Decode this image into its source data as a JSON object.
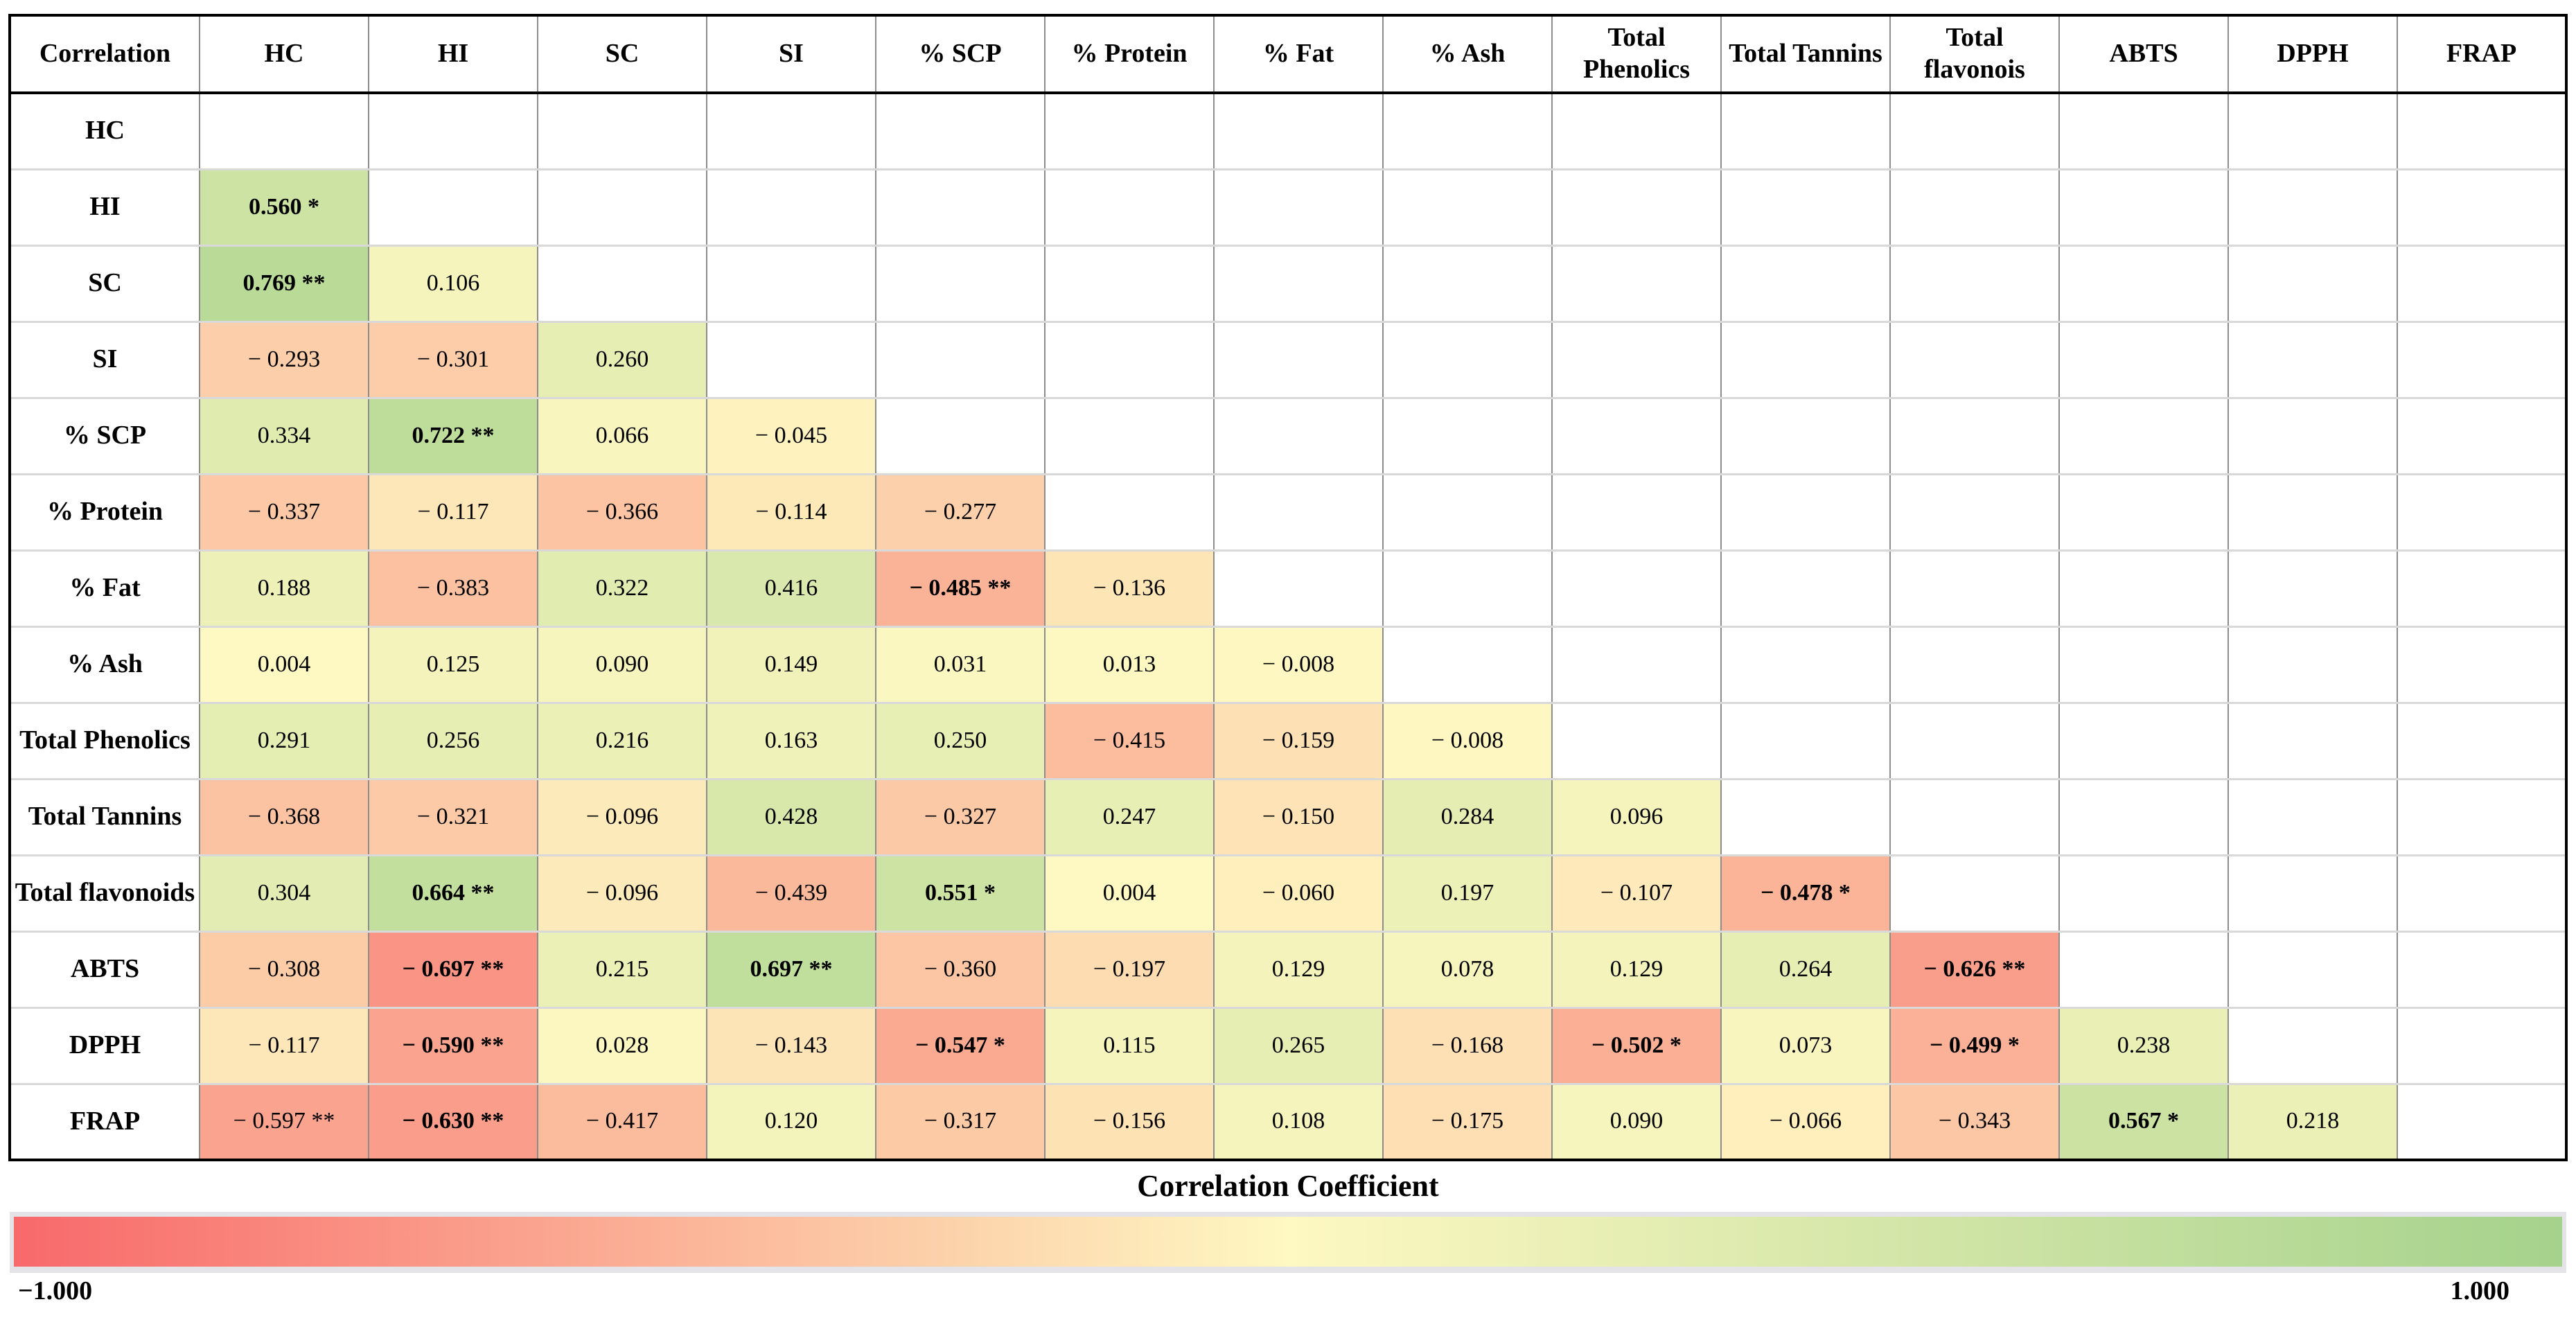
{
  "chart_data": {
    "type": "heatmap",
    "corner_label": "Correlation",
    "column_headers": [
      "HC",
      "HI",
      "SC",
      "SI",
      "% SCP",
      "% Protein",
      "% Fat",
      "% Ash",
      "Total Phenolics",
      "Total Tannins",
      "Total flavonois",
      "ABTS",
      "DPPH",
      "FRAP"
    ],
    "rows": [
      {
        "label": "HC",
        "cells": []
      },
      {
        "label": "HI",
        "cells": [
          {
            "text": "0.560 *",
            "value": 0.56,
            "bold": true
          }
        ]
      },
      {
        "label": "SC",
        "cells": [
          {
            "text": "0.769 **",
            "value": 0.769,
            "bold": true
          },
          {
            "text": "0.106",
            "value": 0.106,
            "bold": false
          }
        ]
      },
      {
        "label": "SI",
        "cells": [
          {
            "text": "− 0.293",
            "value": -0.293,
            "bold": false
          },
          {
            "text": "− 0.301",
            "value": -0.301,
            "bold": false
          },
          {
            "text": "0.260",
            "value": 0.26,
            "bold": false
          }
        ]
      },
      {
        "label": "% SCP",
        "cells": [
          {
            "text": "0.334",
            "value": 0.334,
            "bold": false
          },
          {
            "text": "0.722 **",
            "value": 0.722,
            "bold": true
          },
          {
            "text": "0.066",
            "value": 0.066,
            "bold": false
          },
          {
            "text": "− 0.045",
            "value": -0.045,
            "bold": false
          }
        ]
      },
      {
        "label": "% Protein",
        "cells": [
          {
            "text": "− 0.337",
            "value": -0.337,
            "bold": false
          },
          {
            "text": "− 0.117",
            "value": -0.117,
            "bold": false
          },
          {
            "text": "− 0.366",
            "value": -0.366,
            "bold": false
          },
          {
            "text": "− 0.114",
            "value": -0.114,
            "bold": false
          },
          {
            "text": "− 0.277",
            "value": -0.277,
            "bold": false
          }
        ]
      },
      {
        "label": "% Fat",
        "cells": [
          {
            "text": "0.188",
            "value": 0.188,
            "bold": false
          },
          {
            "text": "− 0.383",
            "value": -0.383,
            "bold": false
          },
          {
            "text": "0.322",
            "value": 0.322,
            "bold": false
          },
          {
            "text": "0.416",
            "value": 0.416,
            "bold": false
          },
          {
            "text": "− 0.485 **",
            "value": -0.485,
            "bold": true
          },
          {
            "text": "− 0.136",
            "value": -0.136,
            "bold": false
          }
        ]
      },
      {
        "label": "% Ash",
        "cells": [
          {
            "text": "0.004",
            "value": 0.004,
            "bold": false
          },
          {
            "text": "0.125",
            "value": 0.125,
            "bold": false
          },
          {
            "text": "0.090",
            "value": 0.09,
            "bold": false
          },
          {
            "text": "0.149",
            "value": 0.149,
            "bold": false
          },
          {
            "text": "0.031",
            "value": 0.031,
            "bold": false
          },
          {
            "text": "0.013",
            "value": 0.013,
            "bold": false
          },
          {
            "text": "− 0.008",
            "value": -0.008,
            "bold": false
          }
        ]
      },
      {
        "label": "Total Phenolics",
        "cells": [
          {
            "text": "0.291",
            "value": 0.291,
            "bold": false
          },
          {
            "text": "0.256",
            "value": 0.256,
            "bold": false
          },
          {
            "text": "0.216",
            "value": 0.216,
            "bold": false
          },
          {
            "text": "0.163",
            "value": 0.163,
            "bold": false
          },
          {
            "text": "0.250",
            "value": 0.25,
            "bold": false
          },
          {
            "text": "− 0.415",
            "value": -0.415,
            "bold": false
          },
          {
            "text": "− 0.159",
            "value": -0.159,
            "bold": false
          },
          {
            "text": "− 0.008",
            "value": -0.008,
            "bold": false
          }
        ]
      },
      {
        "label": "Total Tannins",
        "cells": [
          {
            "text": "− 0.368",
            "value": -0.368,
            "bold": false
          },
          {
            "text": "− 0.321",
            "value": -0.321,
            "bold": false
          },
          {
            "text": "− 0.096",
            "value": -0.096,
            "bold": false
          },
          {
            "text": "0.428",
            "value": 0.428,
            "bold": false
          },
          {
            "text": "− 0.327",
            "value": -0.327,
            "bold": false
          },
          {
            "text": "0.247",
            "value": 0.247,
            "bold": false
          },
          {
            "text": "− 0.150",
            "value": -0.15,
            "bold": false
          },
          {
            "text": "0.284",
            "value": 0.284,
            "bold": false
          },
          {
            "text": "0.096",
            "value": 0.096,
            "bold": false
          }
        ]
      },
      {
        "label": "Total flavonoids",
        "cells": [
          {
            "text": "0.304",
            "value": 0.304,
            "bold": false
          },
          {
            "text": "0.664 **",
            "value": 0.664,
            "bold": true
          },
          {
            "text": "− 0.096",
            "value": -0.096,
            "bold": false
          },
          {
            "text": "− 0.439",
            "value": -0.439,
            "bold": false
          },
          {
            "text": "0.551 *",
            "value": 0.551,
            "bold": true
          },
          {
            "text": "0.004",
            "value": 0.004,
            "bold": false
          },
          {
            "text": "− 0.060",
            "value": -0.06,
            "bold": false
          },
          {
            "text": "0.197",
            "value": 0.197,
            "bold": false
          },
          {
            "text": "− 0.107",
            "value": -0.107,
            "bold": false
          },
          {
            "text": "− 0.478 *",
            "value": -0.478,
            "bold": true
          }
        ]
      },
      {
        "label": "ABTS",
        "cells": [
          {
            "text": "− 0.308",
            "value": -0.308,
            "bold": false
          },
          {
            "text": "− 0.697 **",
            "value": -0.697,
            "bold": true
          },
          {
            "text": "0.215",
            "value": 0.215,
            "bold": false
          },
          {
            "text": "0.697 **",
            "value": 0.697,
            "bold": true
          },
          {
            "text": "− 0.360",
            "value": -0.36,
            "bold": false
          },
          {
            "text": "− 0.197",
            "value": -0.197,
            "bold": false
          },
          {
            "text": "0.129",
            "value": 0.129,
            "bold": false
          },
          {
            "text": "0.078",
            "value": 0.078,
            "bold": false
          },
          {
            "text": "0.129",
            "value": 0.129,
            "bold": false
          },
          {
            "text": "0.264",
            "value": 0.264,
            "bold": false
          },
          {
            "text": "− 0.626 **",
            "value": -0.626,
            "bold": true
          }
        ]
      },
      {
        "label": "DPPH",
        "cells": [
          {
            "text": "− 0.117",
            "value": -0.117,
            "bold": false
          },
          {
            "text": "− 0.590 **",
            "value": -0.59,
            "bold": true
          },
          {
            "text": "0.028",
            "value": 0.028,
            "bold": false
          },
          {
            "text": "− 0.143",
            "value": -0.143,
            "bold": false
          },
          {
            "text": "− 0.547 *",
            "value": -0.547,
            "bold": true
          },
          {
            "text": "0.115",
            "value": 0.115,
            "bold": false
          },
          {
            "text": "0.265",
            "value": 0.265,
            "bold": false
          },
          {
            "text": "− 0.168",
            "value": -0.168,
            "bold": false
          },
          {
            "text": "− 0.502 *",
            "value": -0.502,
            "bold": true
          },
          {
            "text": "0.073",
            "value": 0.073,
            "bold": false
          },
          {
            "text": "− 0.499 *",
            "value": -0.499,
            "bold": true
          },
          {
            "text": "0.238",
            "value": 0.238,
            "bold": false
          }
        ]
      },
      {
        "label": "FRAP",
        "cells": [
          {
            "text": "− 0.597 **",
            "value": -0.597,
            "bold": false
          },
          {
            "text": "− 0.630 **",
            "value": -0.63,
            "bold": true
          },
          {
            "text": "− 0.417",
            "value": -0.417,
            "bold": false
          },
          {
            "text": "0.120",
            "value": 0.12,
            "bold": false
          },
          {
            "text": "− 0.317",
            "value": -0.317,
            "bold": false
          },
          {
            "text": "− 0.156",
            "value": -0.156,
            "bold": false
          },
          {
            "text": "0.108",
            "value": 0.108,
            "bold": false
          },
          {
            "text": "− 0.175",
            "value": -0.175,
            "bold": false
          },
          {
            "text": "0.090",
            "value": 0.09,
            "bold": false
          },
          {
            "text": "− 0.066",
            "value": -0.066,
            "bold": false
          },
          {
            "text": "− 0.343",
            "value": -0.343,
            "bold": false
          },
          {
            "text": "0.567 *",
            "value": 0.567,
            "bold": true
          },
          {
            "text": "0.218",
            "value": 0.218,
            "bold": false
          }
        ]
      }
    ],
    "legend": {
      "title": "Correlation Coefficient",
      "min_label": "−1.000",
      "max_label": "1.000",
      "min_value": -1.0,
      "max_value": 1.0
    },
    "colors": {
      "scale_min": "#F8696B",
      "scale_mid": "#FEF8C2",
      "scale_max": "#A5D28C",
      "empty_cell": "#FFFFFF"
    }
  }
}
